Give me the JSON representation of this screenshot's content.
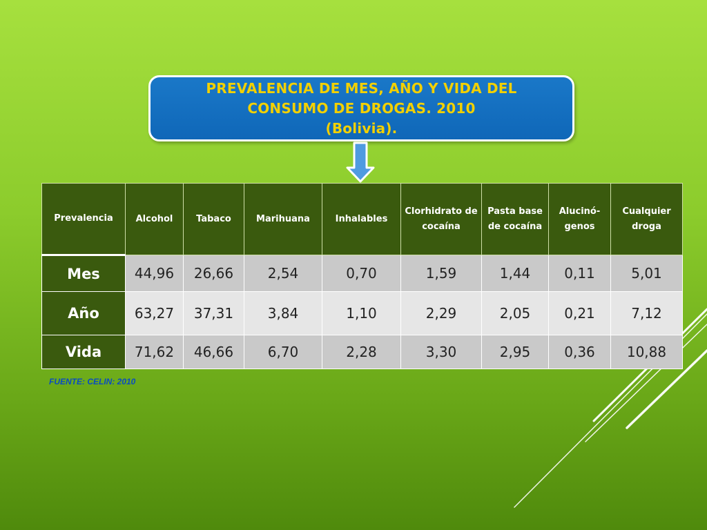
{
  "title": {
    "line1": "PREVALENCIA DE MES, AÑO Y VIDA DEL",
    "line2": "CONSUMO DE DROGAS. 2010",
    "line3": "(Bolivia)."
  },
  "colors": {
    "title_bg": "#1a78c8",
    "title_text": "#f2d000",
    "header_bg": "#3a5a0e",
    "source_text": "#0a4cc0"
  },
  "table": {
    "headers": [
      "Prevalencia",
      "Alcohol",
      "Tabaco",
      "Marihuana",
      "Inhalables",
      "Clorhidrato de cocaína",
      "Pasta base de cocaína",
      "Alucinó-genos",
      "Cualquier droga"
    ],
    "rows": [
      {
        "label": "Mes",
        "values": [
          "44,96",
          "26,66",
          "2,54",
          "0,70",
          "1,59",
          "1,44",
          "0,11",
          "5,01"
        ]
      },
      {
        "label": "Año",
        "values": [
          "63,27",
          "37,31",
          "3,84",
          "1,10",
          "2,29",
          "2,05",
          "0,21",
          "7,12"
        ]
      },
      {
        "label": "Vida",
        "values": [
          "71,62",
          "46,66",
          "6,70",
          "2,28",
          "3,30",
          "2,95",
          "0,36",
          "10,88"
        ]
      }
    ]
  },
  "source": "FUENTE: CELIN: 2010"
}
